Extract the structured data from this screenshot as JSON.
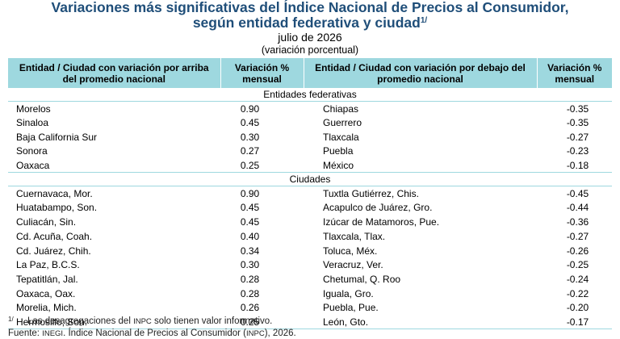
{
  "header": {
    "title_line1": "Variaciones más significativas del Índice Nacional de Precios al Consumidor,",
    "title_line2": "según entidad federativa y ciudad",
    "title_note_mark": "1/",
    "subtitle": "julio de 2026",
    "unit": "(variación porcentual)"
  },
  "columns": {
    "above_name": "Entidad / Ciudad con variación por arriba del promedio nacional",
    "above_value": "Variación % mensual",
    "below_name": "Entidad / Ciudad con variación por debajo del promedio nacional",
    "below_value": "Variación % mensual"
  },
  "sections": [
    {
      "label": "Entidades federativas",
      "rows": [
        {
          "above": "Morelos",
          "above_value": "0.90",
          "below": "Chiapas",
          "below_value": "-0.35"
        },
        {
          "above": "Sinaloa",
          "above_value": "0.45",
          "below": "Guerrero",
          "below_value": "-0.35"
        },
        {
          "above": "Baja California Sur",
          "above_value": "0.30",
          "below": "Tlaxcala",
          "below_value": "-0.27"
        },
        {
          "above": "Sonora",
          "above_value": "0.27",
          "below": "Puebla",
          "below_value": "-0.23"
        },
        {
          "above": "Oaxaca",
          "above_value": "0.25",
          "below": "México",
          "below_value": "-0.18"
        }
      ]
    },
    {
      "label": "Ciudades",
      "rows": [
        {
          "above": "Cuernavaca, Mor.",
          "above_value": "0.90",
          "below": "Tuxtla Gutiérrez, Chis.",
          "below_value": "-0.45"
        },
        {
          "above": "Huatabampo, Son.",
          "above_value": "0.45",
          "below": "Acapulco de Juárez, Gro.",
          "below_value": "-0.44"
        },
        {
          "above": "Culiacán, Sin.",
          "above_value": "0.45",
          "below": "Izúcar de Matamoros, Pue.",
          "below_value": "-0.36"
        },
        {
          "above": "Cd. Acuña, Coah.",
          "above_value": "0.40",
          "below": "Tlaxcala, Tlax.",
          "below_value": "-0.27"
        },
        {
          "above": "Cd. Juárez, Chih.",
          "above_value": "0.34",
          "below": "Toluca, Méx.",
          "below_value": "-0.26"
        },
        {
          "above": "La Paz, B.C.S.",
          "above_value": "0.30",
          "below": "Veracruz, Ver.",
          "below_value": "-0.25"
        },
        {
          "above": "Tepatitlán, Jal.",
          "above_value": "0.28",
          "below": "Chetumal, Q. Roo",
          "below_value": "-0.24"
        },
        {
          "above": "Oaxaca, Oax.",
          "above_value": "0.28",
          "below": "Iguala, Gro.",
          "below_value": "-0.22"
        },
        {
          "above": "Morelia, Mich.",
          "above_value": "0.26",
          "below": "Puebla, Pue.",
          "below_value": "-0.20"
        },
        {
          "above": "Hermosillo, Son.",
          "above_value": "0.25",
          "below": "León, Gto.",
          "below_value": "-0.17"
        }
      ]
    }
  ],
  "notes": {
    "footnote_mark": "1/",
    "footnote_pre": "Las desagregaciones del ",
    "footnote_abbr": "INPC",
    "footnote_post": " solo tienen valor informativo.",
    "source_pre": "Fuente: ",
    "source_abbr1": "INEGI",
    "source_mid": ". Índice Nacional de Precios al Consumidor (",
    "source_abbr2": "INPC",
    "source_post": "), 2026."
  },
  "colors": {
    "title": "#1f4e79",
    "header_fill": "#9ed8df"
  }
}
